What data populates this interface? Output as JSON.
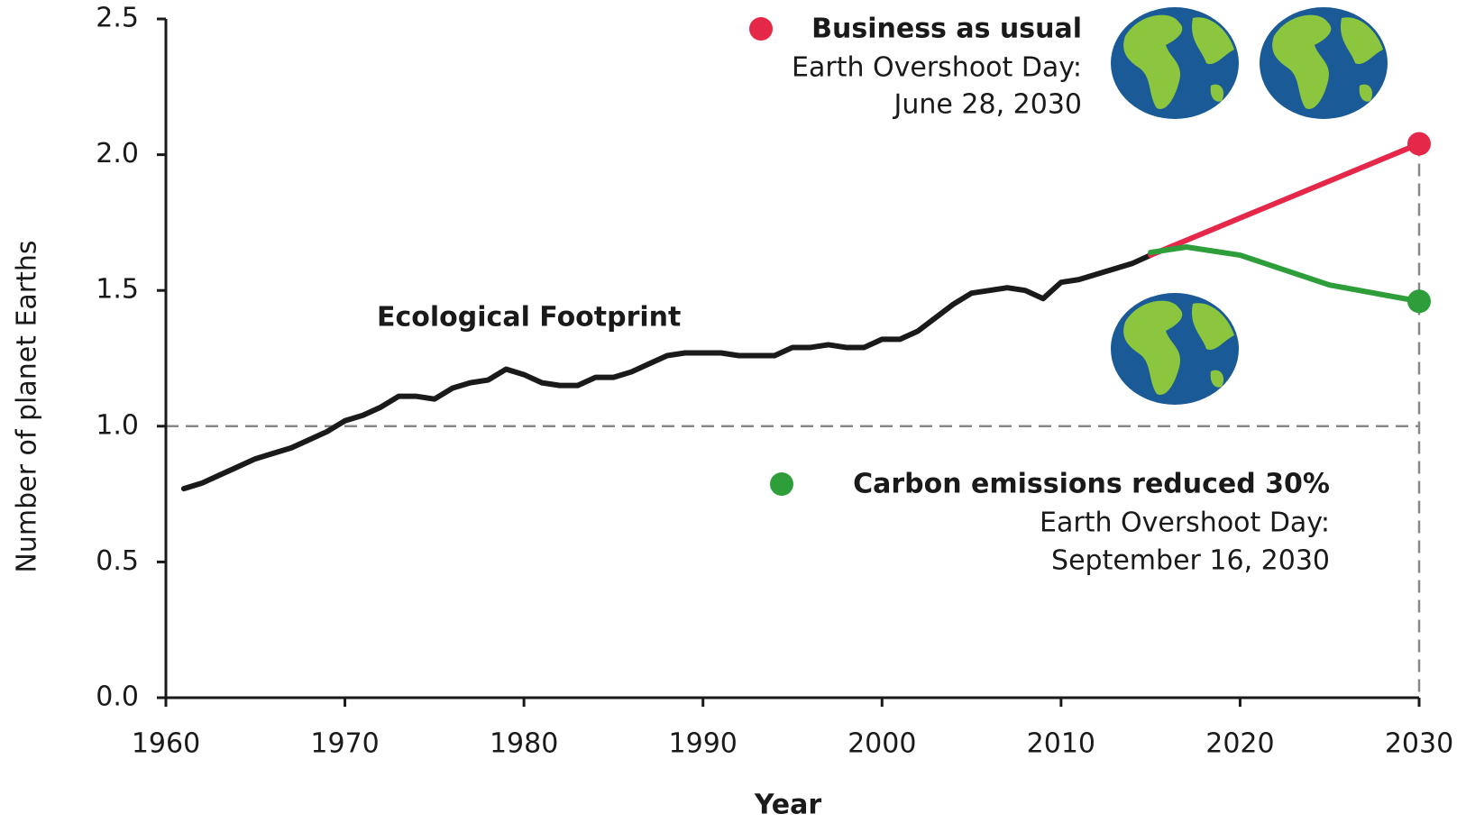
{
  "chart_data": {
    "type": "line",
    "xlabel": "Year",
    "ylabel": "Number of planet Earths",
    "xlim": [
      1960,
      2030
    ],
    "xticks": [
      1960,
      1970,
      1980,
      1990,
      2000,
      2010,
      2020,
      2030
    ],
    "ylim": [
      0,
      2.5
    ],
    "yticks": [
      {
        "value": 0,
        "label": "0.0"
      },
      0.5,
      {
        "value": 1,
        "label": "1.0"
      },
      1.5,
      {
        "value": 2,
        "label": "2.0"
      },
      2.5
    ],
    "hline": 1,
    "series": [
      {
        "name": "Ecological Footprint",
        "color": "#1a1a1a",
        "x": [
          1961,
          1962,
          1963,
          1964,
          1965,
          1966,
          1967,
          1968,
          1969,
          1970,
          1971,
          1972,
          1973,
          1974,
          1975,
          1976,
          1977,
          1978,
          1979,
          1980,
          1981,
          1982,
          1983,
          1984,
          1985,
          1986,
          1987,
          1988,
          1989,
          1990,
          1991,
          1992,
          1993,
          1994,
          1995,
          1996,
          1997,
          1998,
          1999,
          2000,
          2001,
          2002,
          2003,
          2004,
          2005,
          2006,
          2007,
          2008,
          2009,
          2010,
          2011,
          2012,
          2013,
          2014,
          2015
        ],
        "values": [
          0.77,
          0.79,
          0.82,
          0.85,
          0.88,
          0.9,
          0.92,
          0.95,
          0.98,
          1.02,
          1.04,
          1.07,
          1.11,
          1.11,
          1.1,
          1.14,
          1.16,
          1.17,
          1.21,
          1.19,
          1.16,
          1.15,
          1.15,
          1.18,
          1.18,
          1.2,
          1.23,
          1.26,
          1.27,
          1.27,
          1.27,
          1.26,
          1.26,
          1.26,
          1.29,
          1.29,
          1.3,
          1.29,
          1.29,
          1.32,
          1.32,
          1.35,
          1.4,
          1.45,
          1.49,
          1.5,
          1.51,
          1.5,
          1.47,
          1.53,
          1.54,
          1.56,
          1.58,
          1.6,
          1.63
        ]
      },
      {
        "name": "Business as usual",
        "color": "#e5284a",
        "x": [
          2015,
          2030
        ],
        "values": [
          1.63,
          2.04
        ]
      },
      {
        "name": "Carbon emissions reduced 30%",
        "color": "#2e9e3a",
        "x": [
          2015,
          2017,
          2020,
          2025,
          2030
        ],
        "values": [
          1.64,
          1.66,
          1.63,
          1.52,
          1.46
        ]
      }
    ],
    "annotations": [
      [
        "Earth Overshoot Day:",
        "June 28, 2030"
      ],
      [
        "Earth Overshoot Day:",
        "September 16, 2030"
      ]
    ]
  }
}
